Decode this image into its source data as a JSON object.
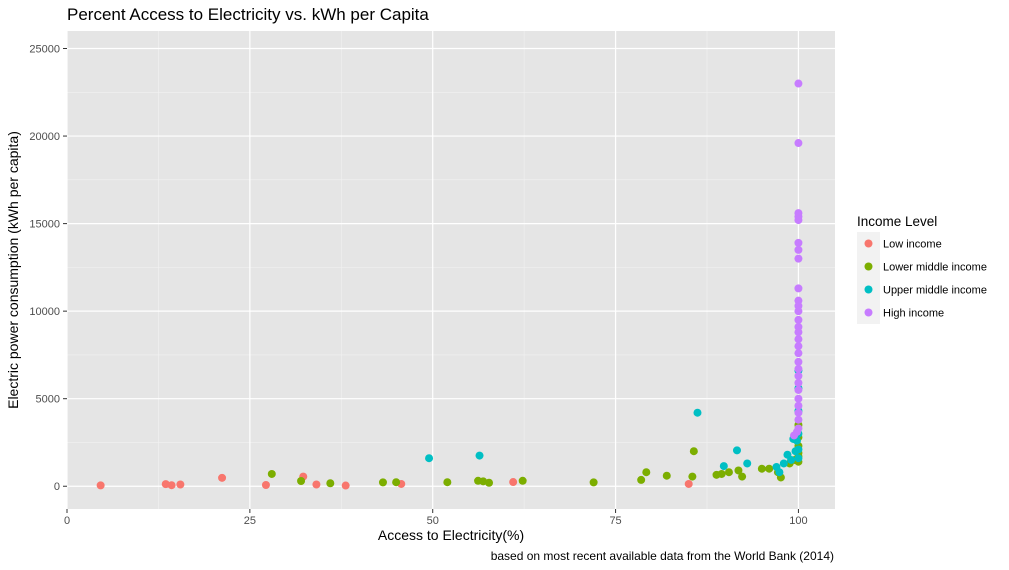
{
  "chart_data": {
    "type": "scatter",
    "title": "Percent Access to Electricity vs. kWh per Capita",
    "xlabel": "Access to Electricity(%)",
    "ylabel": "Electric power consumption (kWh per capita)",
    "caption": "based on most recent available data from the World Bank (2014)",
    "xlim": [
      0,
      105
    ],
    "ylim": [
      -1300,
      26000
    ],
    "xticks": [
      0,
      25,
      50,
      75,
      100
    ],
    "yticks": [
      0,
      5000,
      10000,
      15000,
      20000,
      25000
    ],
    "xtick_labels": [
      "0",
      "25",
      "50",
      "75",
      "100"
    ],
    "ytick_labels": [
      "0",
      "5000",
      "10000",
      "15000",
      "20000",
      "25000"
    ],
    "grid": true,
    "legend": {
      "title": "Income Level",
      "placement": "right"
    },
    "series": [
      {
        "name": "Low income",
        "color": "#F8766D",
        "points": [
          [
            4.6,
            50
          ],
          [
            13.5,
            120
          ],
          [
            14.3,
            60
          ],
          [
            15.5,
            100
          ],
          [
            21.2,
            480
          ],
          [
            27.2,
            70
          ],
          [
            32.3,
            550
          ],
          [
            34.1,
            100
          ],
          [
            38.1,
            40
          ],
          [
            45.7,
            130
          ],
          [
            61.0,
            240
          ],
          [
            85.0,
            130
          ]
        ]
      },
      {
        "name": "Lower middle income",
        "color": "#7CAE00",
        "points": [
          [
            28.0,
            700
          ],
          [
            32.0,
            300
          ],
          [
            36.0,
            170
          ],
          [
            43.2,
            220
          ],
          [
            45.0,
            230
          ],
          [
            52.0,
            230
          ],
          [
            56.2,
            310
          ],
          [
            56.9,
            280
          ],
          [
            57.7,
            200
          ],
          [
            62.3,
            310
          ],
          [
            72.0,
            220
          ],
          [
            78.5,
            360
          ],
          [
            79.2,
            800
          ],
          [
            82.0,
            600
          ],
          [
            85.5,
            550
          ],
          [
            85.7,
            2000
          ],
          [
            88.8,
            650
          ],
          [
            89.5,
            700
          ],
          [
            90.5,
            800
          ],
          [
            91.8,
            900
          ],
          [
            92.3,
            550
          ],
          [
            95.0,
            1000
          ],
          [
            96.0,
            1000
          ],
          [
            97.2,
            800
          ],
          [
            97.6,
            500
          ],
          [
            98.8,
            1300
          ],
          [
            99.5,
            1500
          ],
          [
            100,
            1400
          ],
          [
            100,
            1700
          ],
          [
            100,
            1900
          ],
          [
            100,
            2300
          ],
          [
            100,
            2800
          ],
          [
            100,
            3500
          ]
        ]
      },
      {
        "name": "Upper middle income",
        "color": "#00BFC4",
        "points": [
          [
            49.5,
            1600
          ],
          [
            56.4,
            1750
          ],
          [
            86.2,
            4200
          ],
          [
            89.8,
            1150
          ],
          [
            91.6,
            2050
          ],
          [
            93.0,
            1300
          ],
          [
            97.0,
            1100
          ],
          [
            97.4,
            800
          ],
          [
            98.0,
            1300
          ],
          [
            98.5,
            1800
          ],
          [
            99.0,
            1500
          ],
          [
            99.3,
            2700
          ],
          [
            99.6,
            2000
          ],
          [
            99.8,
            2600
          ],
          [
            100,
            1600
          ],
          [
            100,
            2100
          ],
          [
            100,
            3000
          ],
          [
            100,
            4300
          ],
          [
            100,
            5600
          ],
          [
            100,
            6600
          ]
        ]
      },
      {
        "name": "High income",
        "color": "#C77CFF",
        "points": [
          [
            99.4,
            2900
          ],
          [
            99.8,
            3100
          ],
          [
            100,
            3300
          ],
          [
            100,
            3800
          ],
          [
            100,
            4200
          ],
          [
            100,
            4600
          ],
          [
            100,
            5000
          ],
          [
            100,
            5500
          ],
          [
            100,
            5900
          ],
          [
            100,
            6300
          ],
          [
            100,
            6700
          ],
          [
            100,
            7100
          ],
          [
            100,
            7600
          ],
          [
            100,
            8000
          ],
          [
            100,
            8400
          ],
          [
            100,
            8800
          ],
          [
            100,
            9100
          ],
          [
            100,
            9500
          ],
          [
            100,
            10000
          ],
          [
            100,
            10300
          ],
          [
            100,
            10600
          ],
          [
            100,
            11300
          ],
          [
            100,
            13000
          ],
          [
            100,
            13500
          ],
          [
            100,
            13900
          ],
          [
            100,
            15200
          ],
          [
            100,
            15400
          ],
          [
            100,
            15600
          ],
          [
            100,
            19600
          ],
          [
            100,
            23000
          ]
        ]
      }
    ]
  }
}
